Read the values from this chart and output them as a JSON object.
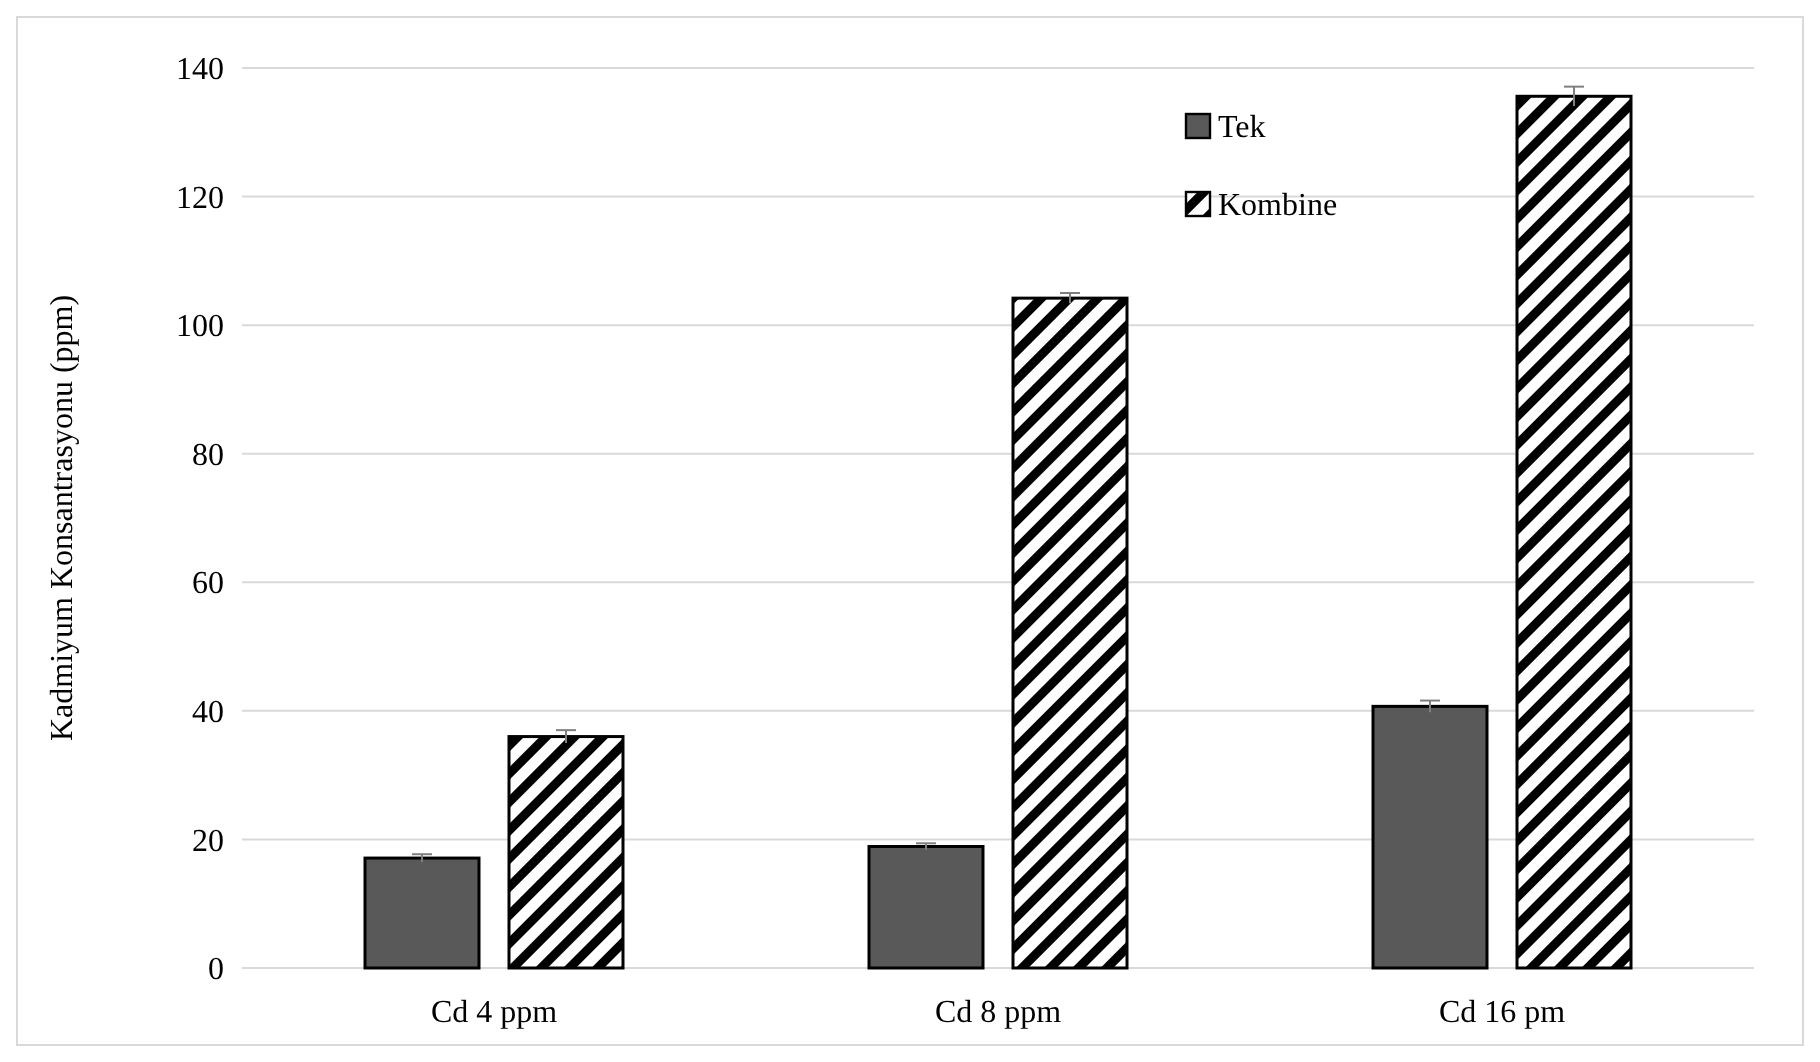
{
  "chart_data": {
    "type": "bar",
    "ylabel": "Kadmiyum Konsantrasyonu (ppm)",
    "categories": [
      "Cd 4 ppm",
      "Cd 8 ppm",
      "Cd 16 pm"
    ],
    "series": [
      {
        "name": "Tek",
        "color": "#595959",
        "values": [
          17.1,
          18.9,
          40.7
        ],
        "errors": [
          0.6,
          0.5,
          0.9
        ]
      },
      {
        "name": "Kombine",
        "color": "#000000",
        "values": [
          36.0,
          104.2,
          135.6
        ],
        "errors": [
          1.0,
          0.8,
          1.5
        ]
      }
    ],
    "ylim": [
      0,
      140
    ],
    "yticks": [
      0,
      20,
      40,
      60,
      80,
      100,
      120,
      140
    ],
    "grid": "y",
    "legend": "top right"
  }
}
